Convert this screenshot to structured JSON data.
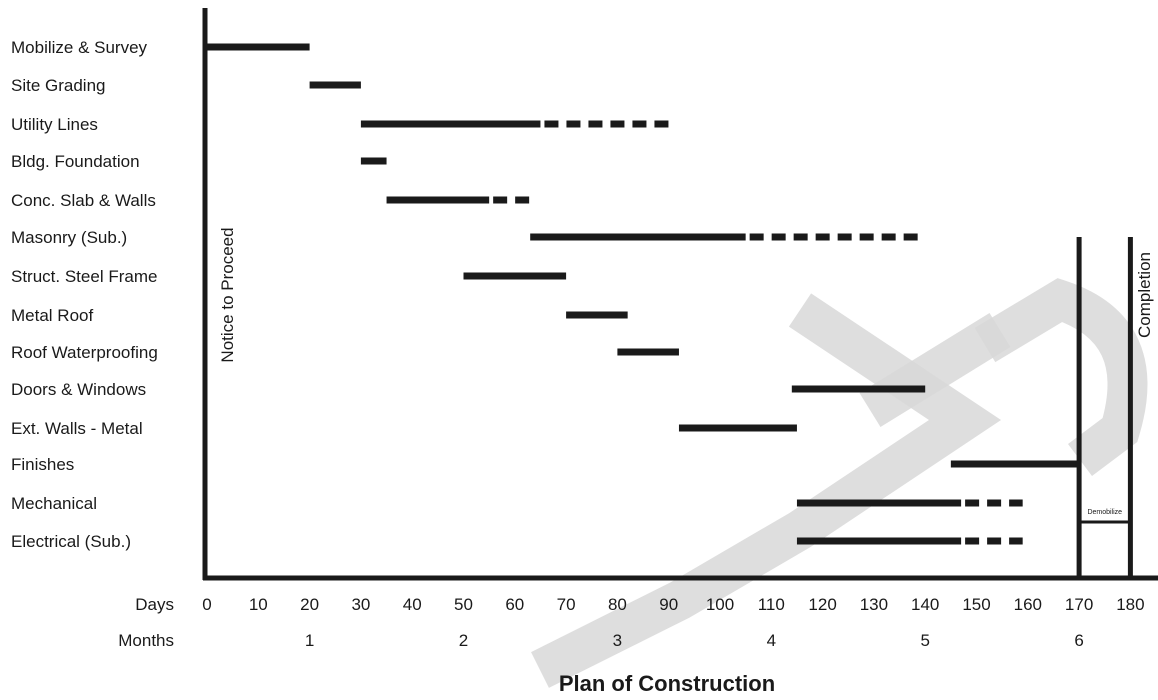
{
  "chart_data": {
    "type": "gantt",
    "title": "Plan of Construction",
    "x_axis_label": "Days",
    "secondary_axis_label": "Months",
    "xlim": [
      0,
      180
    ],
    "x_ticks": [
      0,
      10,
      20,
      30,
      40,
      50,
      60,
      70,
      80,
      90,
      100,
      110,
      120,
      130,
      140,
      150,
      160,
      170,
      180
    ],
    "months": [
      {
        "label": "1",
        "day": 20
      },
      {
        "label": "2",
        "day": 50
      },
      {
        "label": "3",
        "day": 80
      },
      {
        "label": "4",
        "day": 110
      },
      {
        "label": "5",
        "day": 140
      },
      {
        "label": "6",
        "day": 170
      }
    ],
    "tasks": [
      {
        "name": "Mobilize & Survey",
        "start": 0,
        "end": 20,
        "float_end": null
      },
      {
        "name": "Site Grading",
        "start": 20,
        "end": 30,
        "float_end": null
      },
      {
        "name": "Utility Lines",
        "start": 30,
        "end": 65,
        "float_end": 90
      },
      {
        "name": "Bldg. Foundation",
        "start": 30,
        "end": 35,
        "float_end": null
      },
      {
        "name": "Conc. Slab & Walls",
        "start": 35,
        "end": 55,
        "float_end": 63
      },
      {
        "name": "Masonry (Sub.)",
        "start": 63,
        "end": 105,
        "float_end": 140
      },
      {
        "name": "Struct. Steel Frame",
        "start": 50,
        "end": 70,
        "float_end": null
      },
      {
        "name": "Metal Roof",
        "start": 70,
        "end": 82,
        "float_end": null
      },
      {
        "name": "Roof Waterproofing",
        "start": 80,
        "end": 92,
        "float_end": null
      },
      {
        "name": "Doors & Windows",
        "start": 114,
        "end": 140,
        "float_end": null
      },
      {
        "name": "Ext. Walls - Metal",
        "start": 92,
        "end": 115,
        "float_end": null
      },
      {
        "name": "Finishes",
        "start": 145,
        "end": 170,
        "float_end": null
      },
      {
        "name": "Mechanical",
        "start": 115,
        "end": 147,
        "float_end": 159
      },
      {
        "name": "Electrical (Sub.)",
        "start": 115,
        "end": 147,
        "float_end": 159
      }
    ],
    "milestones": [
      {
        "label": "Notice to Proceed",
        "day": 0
      },
      {
        "label": "Completion",
        "day": 180
      }
    ],
    "demobilize": {
      "label": "Demobilize",
      "start": 170,
      "end": 180
    },
    "legend": "none",
    "grid": false
  },
  "watermark": {
    "color": "#d8d8d8"
  }
}
